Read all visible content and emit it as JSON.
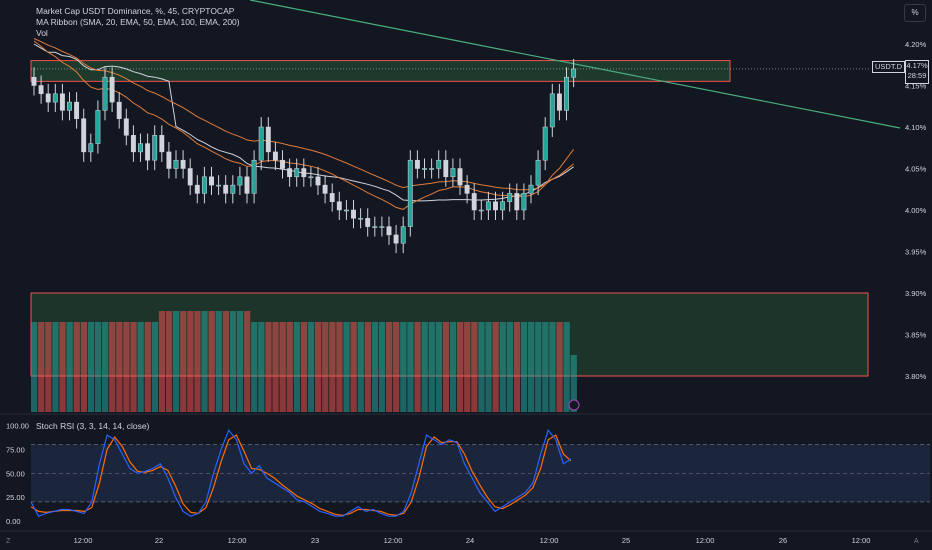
{
  "header": {
    "title": "Market Cap USDT Dominance, %, 45, CRYPTOCAP",
    "ma_ribbon": "MA Ribbon (SMA, 20, EMA, 50, EMA, 100, EMA, 200)",
    "vol": "Vol",
    "scale_button": "%"
  },
  "price_scale": {
    "symbol_tag": "USDT.D",
    "last_price": "4.17%",
    "countdown": "28:59",
    "ticks": [
      "4.20%",
      "4.15%",
      "4.10%",
      "4.05%",
      "4.00%",
      "3.95%",
      "3.90%",
      "3.85%",
      "3.80%"
    ]
  },
  "stoch": {
    "title": "Stoch RSI (3, 3, 14, 14, close)",
    "ticks": [
      "100.00",
      "75.00",
      "50.00",
      "25.00",
      "0.00"
    ]
  },
  "time_axis": {
    "labels": [
      "12:00",
      "22",
      "12:00",
      "23",
      "12:00",
      "24",
      "12:00",
      "25",
      "12:00",
      "26",
      "12:00"
    ],
    "left_corner": "Z",
    "right_corner": "A"
  },
  "colors": {
    "background": "#131722",
    "up": "#26a69a",
    "down": "#ef5350",
    "sma20": "#d1d4dc",
    "ema_orange": "#e07b39",
    "trendline": "#4caf80",
    "zone_fill": "#1e3a2c",
    "zone_border": "#ef5350",
    "stoch_k": "#2962ff",
    "stoch_d": "#ff6d00",
    "stoch_band": "#1e2a44"
  },
  "chart_data": {
    "type": "candlestick",
    "title": "Market Cap USDT Dominance, %, 45, CRYPTOCAP",
    "ylabel": "%",
    "ylim": [
      3.78,
      4.23
    ],
    "closes": [
      4.15,
      4.14,
      4.13,
      4.14,
      4.12,
      4.13,
      4.11,
      4.07,
      4.08,
      4.12,
      4.16,
      4.13,
      4.11,
      4.09,
      4.07,
      4.08,
      4.06,
      4.09,
      4.07,
      4.05,
      4.06,
      4.05,
      4.03,
      4.02,
      4.04,
      4.03,
      4.03,
      4.02,
      4.03,
      4.04,
      4.02,
      4.06,
      4.1,
      4.07,
      4.06,
      4.05,
      4.04,
      4.05,
      4.04,
      4.04,
      4.03,
      4.02,
      4.01,
      4.0,
      4.0,
      3.99,
      3.99,
      3.98,
      3.98,
      3.98,
      3.97,
      3.96,
      3.98,
      4.06,
      4.05,
      4.05,
      4.05,
      4.06,
      4.04,
      4.05,
      4.03,
      4.02,
      4.0,
      4.0,
      4.01,
      4.0,
      4.01,
      4.02,
      4.0,
      4.02,
      4.03,
      4.06,
      4.1,
      4.14,
      4.12,
      4.16,
      4.17
    ],
    "series": [
      {
        "name": "SMA 20",
        "role": "light-gray line"
      },
      {
        "name": "EMA 50",
        "role": "orange line"
      },
      {
        "name": "EMA 100",
        "role": "orange line"
      }
    ],
    "zone_price_range": [
      4.155,
      4.18
    ],
    "volume_zone_price_range": [
      3.8,
      3.9
    ],
    "stoch_rsi": {
      "ylim": [
        0,
        100
      ],
      "bands": [
        20,
        50,
        80
      ],
      "k": [
        20,
        5,
        8,
        10,
        12,
        12,
        10,
        8,
        20,
        60,
        90,
        85,
        70,
        55,
        50,
        52,
        55,
        60,
        45,
        25,
        10,
        5,
        8,
        20,
        50,
        75,
        95,
        85,
        60,
        50,
        58,
        45,
        40,
        35,
        30,
        22,
        20,
        15,
        10,
        8,
        5,
        5,
        10,
        15,
        10,
        12,
        8,
        5,
        5,
        10,
        30,
        60,
        90,
        85,
        80,
        85,
        82,
        60,
        45,
        30,
        20,
        10,
        15,
        20,
        25,
        30,
        40,
        70,
        95,
        85,
        60,
        65
      ],
      "d": [
        15,
        10,
        9,
        10,
        11,
        11,
        11,
        10,
        14,
        40,
        75,
        88,
        78,
        62,
        52,
        51,
        53,
        57,
        53,
        37,
        18,
        9,
        8,
        14,
        35,
        62,
        85,
        90,
        73,
        55,
        54,
        50,
        45,
        38,
        32,
        26,
        22,
        18,
        13,
        10,
        7,
        6,
        8,
        12,
        12,
        11,
        10,
        7,
        6,
        8,
        20,
        45,
        78,
        88,
        82,
        83,
        83,
        70,
        52,
        38,
        25,
        15,
        13,
        17,
        22,
        27,
        35,
        55,
        85,
        90,
        70,
        63
      ]
    }
  }
}
